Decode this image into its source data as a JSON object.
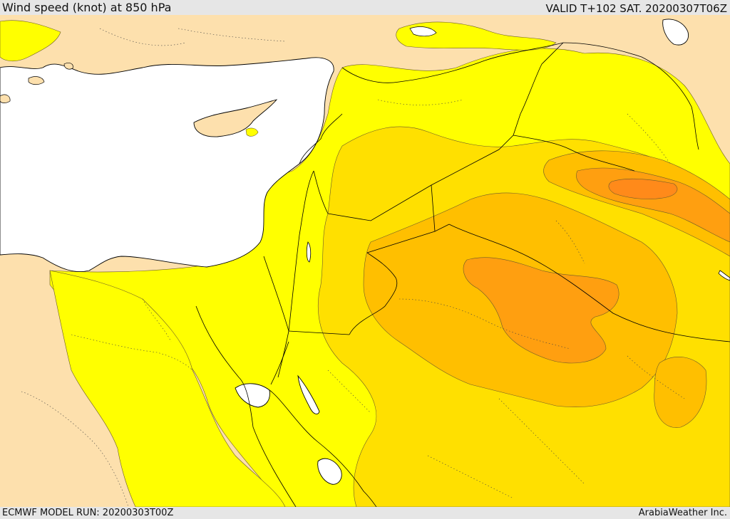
{
  "header": {
    "title": "Wind speed (knot) at 850 hPa",
    "valid": "VALID T+102 SAT. 20200307T06Z"
  },
  "footer": {
    "model_run": "ECMWF MODEL RUN: 20200303T00Z",
    "credit": "ArabiaWeather Inc."
  },
  "colors": {
    "land_calm": "#fde0ad",
    "sea": "#ffffff",
    "wind_band_1": "#ffff00",
    "wind_band_2": "#ffe000",
    "wind_band_3": "#ffbf00",
    "wind_band_4": "#ff9f10",
    "wind_band_5": "#ff8a1a"
  }
}
